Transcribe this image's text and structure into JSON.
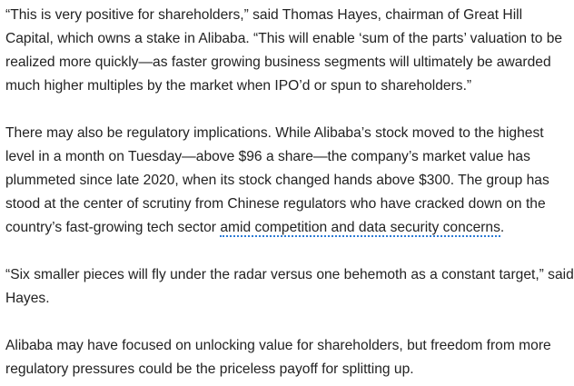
{
  "article": {
    "paragraphs": [
      {
        "text": "“This is very positive for shareholders,” said Thomas Hayes, chairman of Great Hill Capital, which owns a stake in Alibaba. “This will enable ‘sum of the parts’ valuation to be realized more quickly—as faster growing business segments will ultimately be awarded much higher multiples by the market when IPO’d or spun to shareholders.”"
      },
      {
        "text_before_link": "There may also be regulatory implications. While Alibaba’s stock moved to the highest level in a month on Tuesday—above $96 a share—the company’s market value has plummeted since late 2020, when its stock changed hands above $300. The group has stood at the center of scrutiny from Chinese regulators who have cracked down on the country’s fast-growing tech sector ",
        "link_text": "amid competition and data security concerns",
        "text_after_link": "."
      },
      {
        "text": "“Six smaller pieces will fly under the radar versus one behemoth as a constant target,” said Hayes."
      },
      {
        "text": "Alibaba may have focused on unlocking value for shareholders, but freedom from more regulatory pressures could be the priceless payoff for splitting up."
      }
    ]
  },
  "colors": {
    "text": "#222222",
    "link_underline": "#2b7bd6",
    "background": "#ffffff"
  }
}
